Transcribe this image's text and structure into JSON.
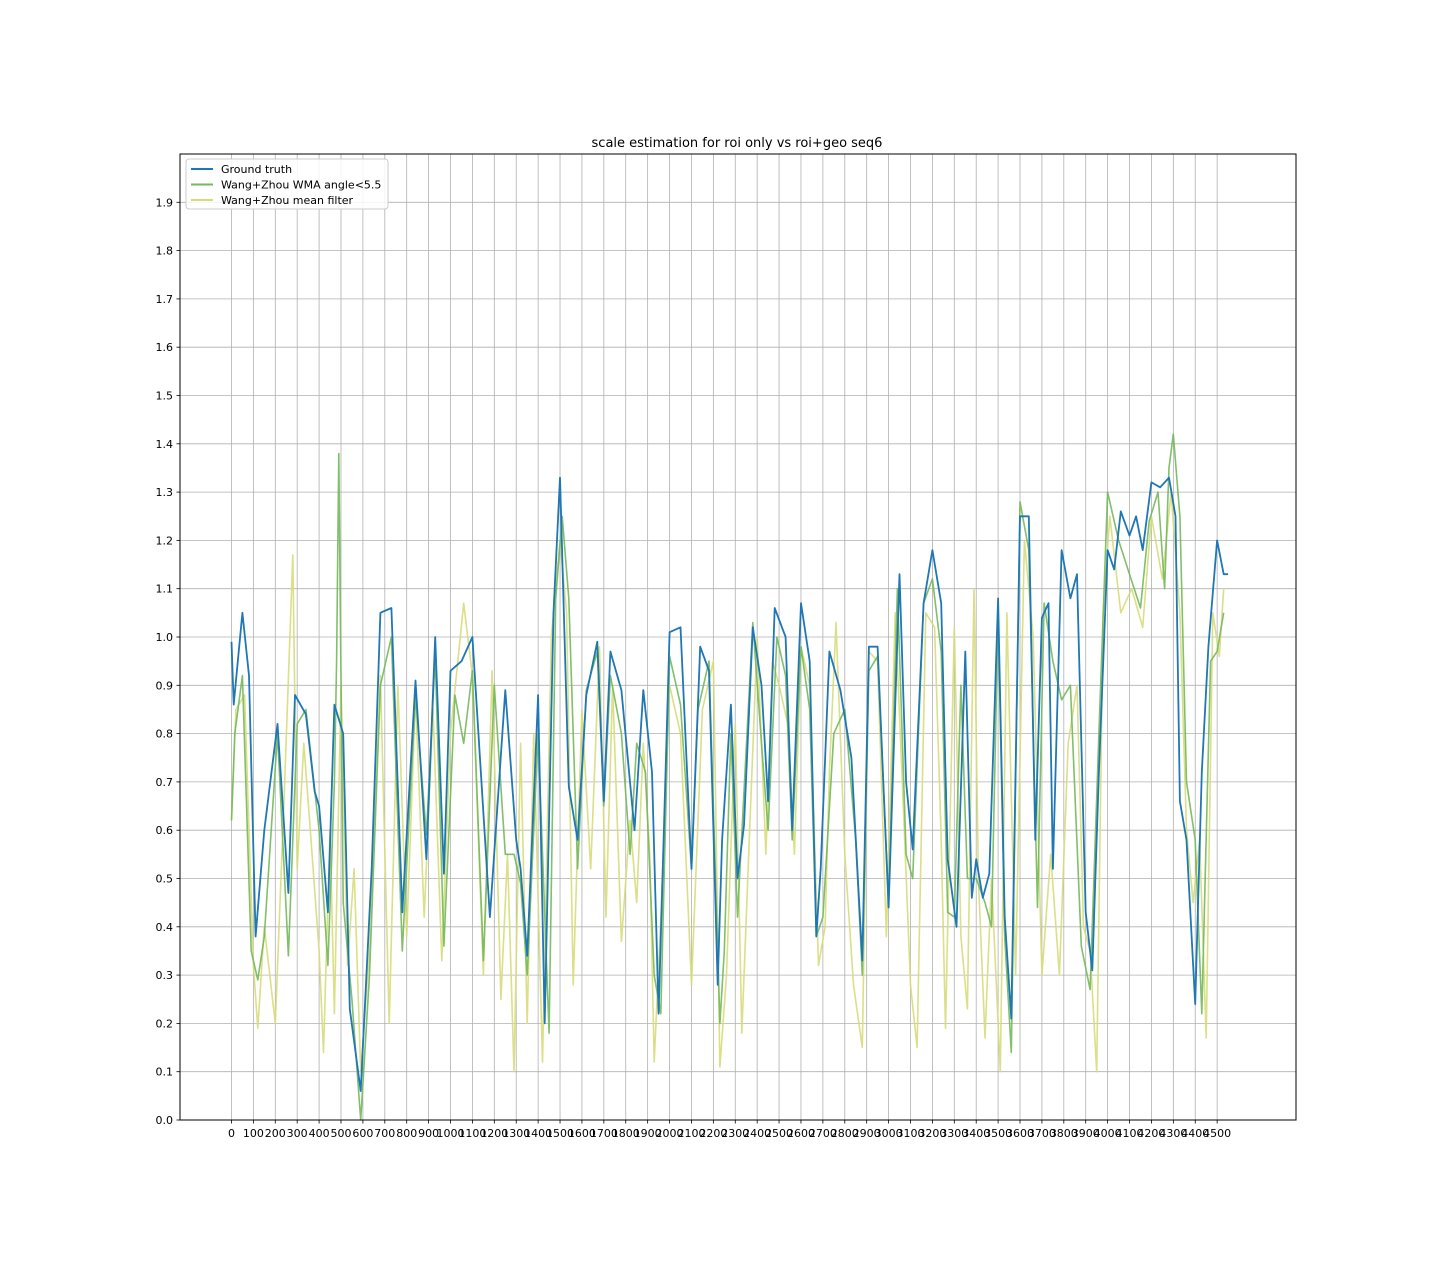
{
  "chart_data": {
    "type": "line",
    "title": "scale estimation for roi only vs roi+geo seq6",
    "xlabel": "",
    "ylabel": "",
    "xlim": [
      -235,
      4860
    ],
    "ylim": [
      0.0,
      2.0
    ],
    "x_ticks": [
      0,
      100,
      200,
      300,
      400,
      500,
      600,
      700,
      800,
      900,
      1000,
      1100,
      1200,
      1300,
      1400,
      1500,
      1600,
      1700,
      1800,
      1900,
      2000,
      2100,
      2200,
      2300,
      2400,
      2500,
      2600,
      2700,
      2800,
      2900,
      3000,
      3100,
      3200,
      3300,
      3400,
      3500,
      3600,
      3700,
      3800,
      3900,
      4000,
      4100,
      4200,
      4300,
      4400,
      4500
    ],
    "y_ticks": [
      "0.0",
      "0.1",
      "0.2",
      "0.3",
      "0.4",
      "0.5",
      "0.6",
      "0.7",
      "0.8",
      "0.9",
      "1.0",
      "1.1",
      "1.2",
      "1.3",
      "1.4",
      "1.5",
      "1.6",
      "1.7",
      "1.8",
      "1.9"
    ],
    "grid": true,
    "legend_position": "top-left",
    "series": [
      {
        "name": "Ground truth",
        "color": "#1f77b4",
        "x": [
          0,
          10,
          50,
          80,
          110,
          150,
          210,
          260,
          290,
          340,
          380,
          400,
          440,
          470,
          510,
          540,
          590,
          640,
          680,
          730,
          780,
          840,
          890,
          930,
          970,
          1000,
          1050,
          1100,
          1180,
          1250,
          1300,
          1320,
          1350,
          1400,
          1430,
          1470,
          1500,
          1540,
          1580,
          1620,
          1670,
          1700,
          1730,
          1780,
          1840,
          1880,
          1920,
          1950,
          2000,
          2050,
          2100,
          2140,
          2180,
          2220,
          2240,
          2280,
          2310,
          2340,
          2380,
          2420,
          2450,
          2480,
          2530,
          2560,
          2600,
          2640,
          2670,
          2690,
          2730,
          2780,
          2830,
          2880,
          2910,
          2950,
          3000,
          3050,
          3080,
          3110,
          3160,
          3200,
          3240,
          3270,
          3310,
          3350,
          3380,
          3400,
          3430,
          3460,
          3500,
          3530,
          3560,
          3600,
          3640,
          3670,
          3700,
          3730,
          3750,
          3790,
          3830,
          3860,
          3900,
          3930,
          3960,
          4000,
          4030,
          4060,
          4100,
          4130,
          4160,
          4200,
          4240,
          4280,
          4310,
          4330,
          4360,
          4400,
          4430,
          4460,
          4500,
          4530,
          4550
        ],
        "values": [
          0.99,
          0.86,
          1.05,
          0.92,
          0.38,
          0.6,
          0.82,
          0.47,
          0.88,
          0.84,
          0.68,
          0.65,
          0.43,
          0.86,
          0.8,
          0.23,
          0.06,
          0.52,
          1.05,
          1.06,
          0.43,
          0.91,
          0.54,
          1.0,
          0.51,
          0.93,
          0.95,
          1.0,
          0.42,
          0.89,
          0.58,
          0.52,
          0.34,
          0.88,
          0.2,
          1.05,
          1.33,
          0.69,
          0.58,
          0.88,
          0.99,
          0.66,
          0.97,
          0.89,
          0.6,
          0.89,
          0.72,
          0.22,
          1.01,
          1.02,
          0.52,
          0.98,
          0.93,
          0.28,
          0.58,
          0.86,
          0.5,
          0.61,
          1.02,
          0.9,
          0.66,
          1.06,
          1.0,
          0.6,
          1.07,
          0.95,
          0.38,
          0.52,
          0.97,
          0.89,
          0.75,
          0.33,
          0.98,
          0.98,
          0.44,
          1.13,
          0.7,
          0.56,
          1.07,
          1.18,
          1.07,
          0.54,
          0.4,
          0.97,
          0.46,
          0.54,
          0.46,
          0.51,
          1.08,
          0.42,
          0.21,
          1.25,
          1.25,
          0.58,
          1.04,
          1.07,
          0.52,
          1.18,
          1.08,
          1.13,
          0.43,
          0.31,
          0.72,
          1.18,
          1.14,
          1.26,
          1.21,
          1.25,
          1.18,
          1.32,
          1.31,
          1.33,
          1.25,
          0.66,
          0.58,
          0.24,
          0.72,
          0.98,
          1.2,
          1.13,
          1.13
        ]
      },
      {
        "name": "Wang+Zhou WMA angle<5.5",
        "color": "#74b85a",
        "x": [
          0,
          15,
          50,
          90,
          120,
          150,
          210,
          260,
          300,
          340,
          400,
          440,
          470,
          480,
          490,
          510,
          550,
          590,
          630,
          680,
          730,
          780,
          840,
          890,
          930,
          970,
          1020,
          1060,
          1100,
          1150,
          1200,
          1250,
          1290,
          1320,
          1350,
          1400,
          1450,
          1480,
          1510,
          1540,
          1580,
          1620,
          1670,
          1700,
          1730,
          1780,
          1820,
          1850,
          1890,
          1930,
          1960,
          2000,
          2050,
          2100,
          2130,
          2180,
          2230,
          2250,
          2280,
          2310,
          2340,
          2380,
          2420,
          2450,
          2490,
          2530,
          2560,
          2600,
          2640,
          2670,
          2700,
          2750,
          2800,
          2850,
          2880,
          2910,
          2950,
          3000,
          3040,
          3080,
          3110,
          3160,
          3200,
          3240,
          3270,
          3300,
          3330,
          3360,
          3400,
          3440,
          3470,
          3500,
          3530,
          3560,
          3600,
          3640,
          3680,
          3710,
          3750,
          3790,
          3830,
          3880,
          3920,
          3960,
          4000,
          4050,
          4100,
          4150,
          4190,
          4230,
          4260,
          4280,
          4300,
          4330,
          4360,
          4400,
          4430,
          4470,
          4500,
          4530
        ],
        "values": [
          0.62,
          0.8,
          0.92,
          0.35,
          0.29,
          0.38,
          0.8,
          0.34,
          0.82,
          0.85,
          0.6,
          0.32,
          0.7,
          0.95,
          1.38,
          0.45,
          0.25,
          0.0,
          0.3,
          0.9,
          1.0,
          0.35,
          0.88,
          0.59,
          0.96,
          0.36,
          0.88,
          0.78,
          0.93,
          0.33,
          0.9,
          0.55,
          0.55,
          0.49,
          0.3,
          0.8,
          0.18,
          1.08,
          1.25,
          1.08,
          0.52,
          0.89,
          0.97,
          0.65,
          0.92,
          0.8,
          0.55,
          0.78,
          0.72,
          0.3,
          0.22,
          0.96,
          0.86,
          0.52,
          0.85,
          0.95,
          0.2,
          0.35,
          0.8,
          0.42,
          0.68,
          1.03,
          0.78,
          0.6,
          1.0,
          0.92,
          0.58,
          0.98,
          0.85,
          0.38,
          0.42,
          0.8,
          0.85,
          0.58,
          0.3,
          0.93,
          0.96,
          0.45,
          1.1,
          0.55,
          0.5,
          1.07,
          1.12,
          0.97,
          0.43,
          0.42,
          0.9,
          0.5,
          0.5,
          0.45,
          0.4,
          1.05,
          0.38,
          0.14,
          1.28,
          1.18,
          0.44,
          1.07,
          0.95,
          0.87,
          0.9,
          0.36,
          0.27,
          0.8,
          1.3,
          1.2,
          1.13,
          1.06,
          1.24,
          1.3,
          1.1,
          1.35,
          1.42,
          1.25,
          0.7,
          0.58,
          0.22,
          0.95,
          0.97,
          1.05
        ]
      },
      {
        "name": "Wang+Zhou mean filter",
        "color": "#d7dc7a",
        "x": [
          0,
          20,
          60,
          100,
          120,
          150,
          200,
          240,
          280,
          300,
          330,
          360,
          400,
          420,
          450,
          470,
          500,
          530,
          560,
          590,
          630,
          680,
          720,
          760,
          800,
          840,
          880,
          920,
          960,
          1000,
          1060,
          1100,
          1150,
          1190,
          1230,
          1260,
          1290,
          1320,
          1350,
          1380,
          1420,
          1460,
          1500,
          1530,
          1560,
          1600,
          1640,
          1680,
          1710,
          1740,
          1780,
          1820,
          1850,
          1880,
          1910,
          1930,
          1960,
          2000,
          2050,
          2100,
          2150,
          2200,
          2230,
          2260,
          2300,
          2330,
          2370,
          2400,
          2440,
          2470,
          2500,
          2540,
          2570,
          2600,
          2640,
          2680,
          2710,
          2730,
          2760,
          2800,
          2840,
          2880,
          2910,
          2950,
          2990,
          3030,
          3070,
          3100,
          3130,
          3170,
          3210,
          3240,
          3260,
          3300,
          3330,
          3360,
          3390,
          3410,
          3440,
          3470,
          3510,
          3540,
          3580,
          3620,
          3660,
          3700,
          3740,
          3780,
          3820,
          3860,
          3890,
          3920,
          3950,
          3980,
          4010,
          4060,
          4110,
          4160,
          4200,
          4250,
          4290,
          4330,
          4360,
          4390,
          4420,
          4450,
          4480,
          4510,
          4530
        ],
        "values": [
          0.62,
          0.85,
          0.88,
          0.32,
          0.19,
          0.4,
          0.2,
          0.66,
          1.17,
          0.52,
          0.78,
          0.6,
          0.35,
          0.14,
          0.6,
          0.22,
          0.9,
          0.32,
          0.52,
          0.1,
          0.35,
          0.92,
          0.2,
          0.9,
          0.38,
          0.88,
          0.42,
          0.85,
          0.33,
          0.8,
          1.07,
          0.92,
          0.3,
          0.93,
          0.25,
          0.55,
          0.1,
          0.78,
          0.2,
          0.8,
          0.12,
          1.0,
          1.2,
          1.05,
          0.28,
          0.85,
          0.52,
          0.98,
          0.42,
          0.9,
          0.37,
          0.62,
          0.45,
          0.78,
          0.55,
          0.12,
          0.42,
          0.9,
          0.8,
          0.28,
          0.85,
          0.95,
          0.11,
          0.3,
          0.82,
          0.18,
          0.65,
          1.0,
          0.55,
          0.95,
          0.9,
          0.82,
          0.55,
          0.98,
          0.9,
          0.32,
          0.4,
          0.72,
          1.03,
          0.55,
          0.28,
          0.15,
          0.97,
          0.95,
          0.38,
          1.05,
          0.62,
          0.28,
          0.15,
          1.05,
          1.02,
          0.58,
          0.19,
          1.02,
          0.38,
          0.23,
          1.1,
          0.5,
          0.17,
          0.5,
          0.1,
          1.05,
          0.3,
          1.2,
          1.0,
          0.3,
          0.55,
          0.3,
          0.78,
          0.9,
          0.4,
          0.35,
          0.1,
          1.05,
          1.25,
          1.05,
          1.1,
          1.02,
          1.25,
          1.12,
          1.3,
          1.05,
          0.6,
          0.45,
          0.58,
          0.17,
          1.05,
          0.96,
          1.1
        ]
      }
    ]
  }
}
